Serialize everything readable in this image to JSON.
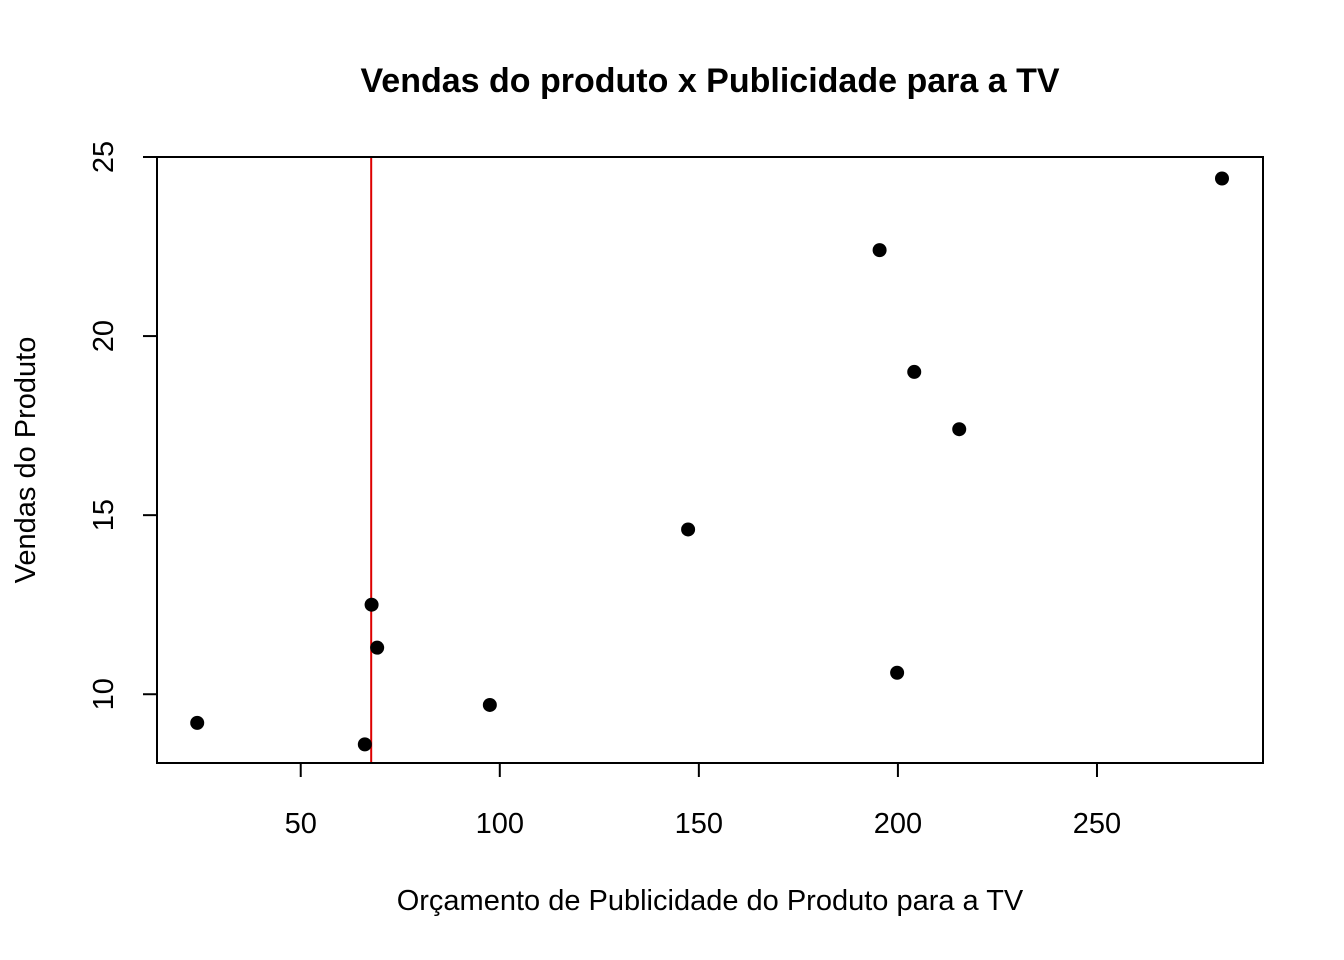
{
  "chart_data": {
    "type": "scatter",
    "title": "Vendas do produto x Publicidade para a TV",
    "xlabel": "Orçamento de Publicidade do Produto para a TV",
    "ylabel": "Vendas do Produto",
    "xlim": [
      13.9,
      291.7
    ],
    "ylim": [
      8.08,
      25.0
    ],
    "xticks": [
      50,
      100,
      150,
      200,
      250
    ],
    "yticks": [
      10,
      15,
      20,
      25
    ],
    "grid": false,
    "legend": "none",
    "point_color": "#000000",
    "vline": {
      "x": 67.7,
      "color": "#dd0000"
    },
    "points": [
      {
        "x": 24.0,
        "y": 9.2
      },
      {
        "x": 66.1,
        "y": 8.6
      },
      {
        "x": 67.8,
        "y": 12.5
      },
      {
        "x": 69.2,
        "y": 11.3
      },
      {
        "x": 97.5,
        "y": 9.7
      },
      {
        "x": 147.3,
        "y": 14.6
      },
      {
        "x": 195.4,
        "y": 22.4
      },
      {
        "x": 199.8,
        "y": 10.6
      },
      {
        "x": 204.1,
        "y": 19.0
      },
      {
        "x": 215.4,
        "y": 17.4
      },
      {
        "x": 281.4,
        "y": 24.4
      }
    ]
  }
}
